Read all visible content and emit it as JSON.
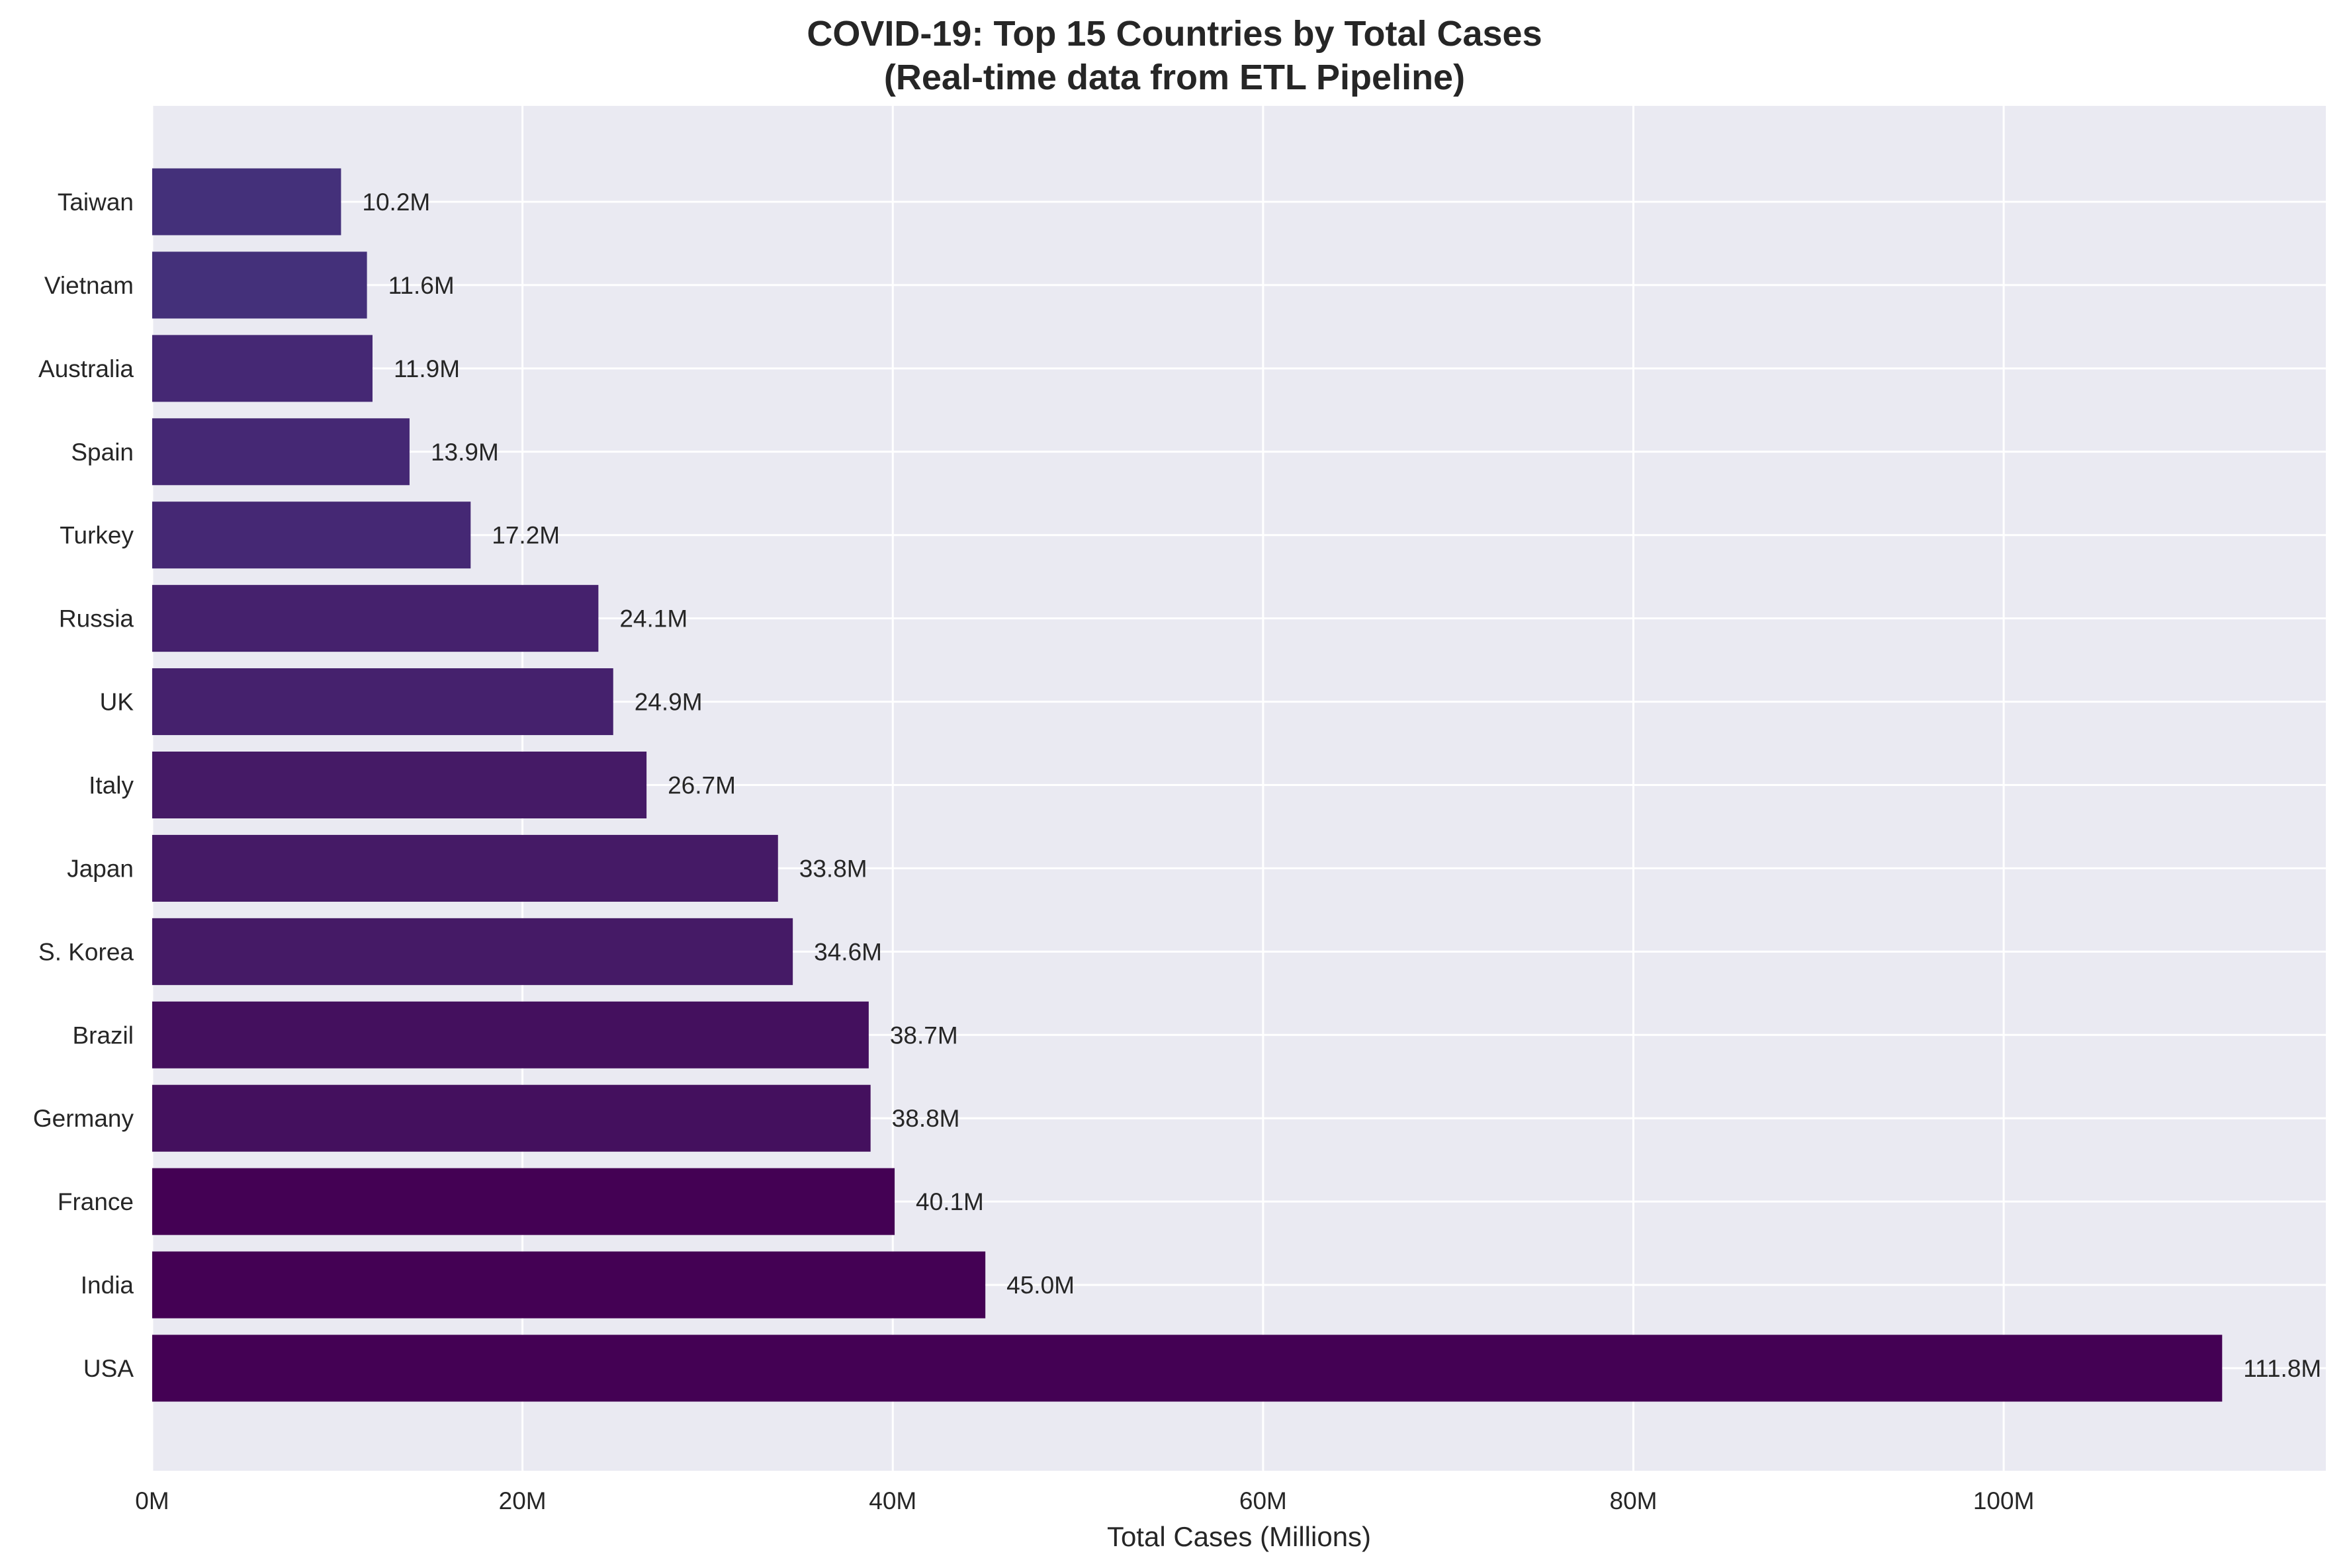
{
  "chart_data": {
    "type": "bar",
    "orientation": "horizontal",
    "title": "COVID-19: Top 15 Countries by Total Cases",
    "subtitle": "(Real-time data from ETL Pipeline)",
    "xlabel": "Total Cases (Millions)",
    "ylabel": "",
    "categories": [
      "USA",
      "India",
      "France",
      "Germany",
      "Brazil",
      "S. Korea",
      "Japan",
      "Italy",
      "UK",
      "Russia",
      "Turkey",
      "Spain",
      "Australia",
      "Vietnam",
      "Taiwan"
    ],
    "values": [
      111.8,
      45.0,
      40.1,
      38.8,
      38.7,
      34.6,
      33.8,
      26.7,
      24.9,
      24.1,
      17.2,
      13.9,
      11.9,
      11.6,
      10.2
    ],
    "value_labels": [
      "111.8M",
      "45.0M",
      "40.1M",
      "38.8M",
      "38.7M",
      "34.6M",
      "33.8M",
      "26.7M",
      "24.9M",
      "24.1M",
      "17.2M",
      "13.9M",
      "11.9M",
      "11.6M",
      "10.2M"
    ],
    "xlim": [
      0,
      117.4
    ],
    "xticks": [
      0,
      20,
      40,
      60,
      80,
      100
    ],
    "xtick_labels": [
      "0M",
      "20M",
      "40M",
      "60M",
      "80M",
      "100M"
    ],
    "grid": true,
    "colors": {
      "plot_background": "#eaeaf2",
      "grid": "#ffffff",
      "bar_gradient": [
        "#440154",
        "#44105e",
        "#451a66",
        "#45216d",
        "#452874",
        "#44307a"
      ]
    }
  }
}
